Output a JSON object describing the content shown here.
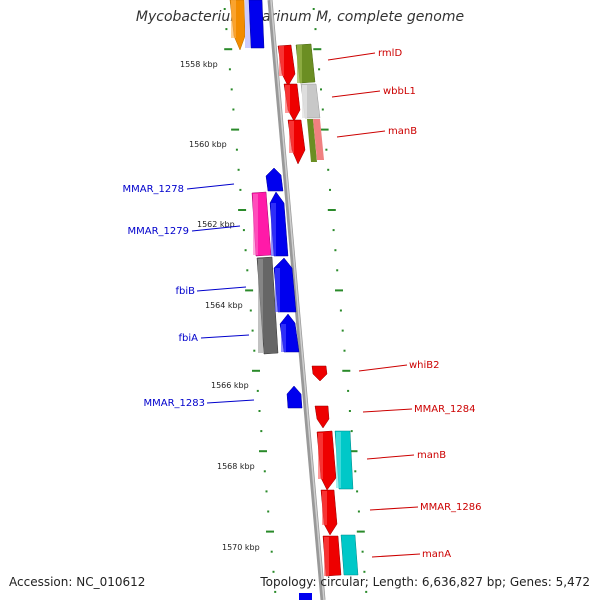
{
  "title": "Mycobacterium marinum M, complete genome",
  "footer": {
    "accession": "Accession: NC_010612",
    "topology": "Topology: circular; Length: 6,636,827 bp; Genes: 5,472"
  },
  "colors": {
    "backbone": "#888888",
    "tick": "#2a8a2a",
    "forward_label": "#cc0000",
    "reverse_label": "#0000cc"
  },
  "kbp_labels": [
    {
      "text": "1558 kbp",
      "kbp": 1558
    },
    {
      "text": "1560 kbp",
      "kbp": 1560
    },
    {
      "text": "1562 kbp",
      "kbp": 1562
    },
    {
      "text": "1564 kbp",
      "kbp": 1564
    },
    {
      "text": "1566 kbp",
      "kbp": 1566
    },
    {
      "text": "1568 kbp",
      "kbp": 1568
    },
    {
      "text": "1570 kbp",
      "kbp": 1570
    }
  ],
  "labels": [
    {
      "text": "rmlD",
      "strand": "forward"
    },
    {
      "text": "wbbL1",
      "strand": "forward"
    },
    {
      "text": "manB",
      "strand": "forward"
    },
    {
      "text": "MMAR_1278",
      "strand": "reverse"
    },
    {
      "text": "MMAR_1279",
      "strand": "reverse"
    },
    {
      "text": "fbiB",
      "strand": "reverse"
    },
    {
      "text": "fbiA",
      "strand": "reverse"
    },
    {
      "text": "whiB2",
      "strand": "forward"
    },
    {
      "text": "MMAR_1283",
      "strand": "reverse"
    },
    {
      "text": "MMAR_1284",
      "strand": "forward"
    },
    {
      "text": "manB",
      "strand": "forward"
    },
    {
      "text": "MMAR_1286",
      "strand": "forward"
    },
    {
      "text": "manA",
      "strand": "forward"
    }
  ]
}
